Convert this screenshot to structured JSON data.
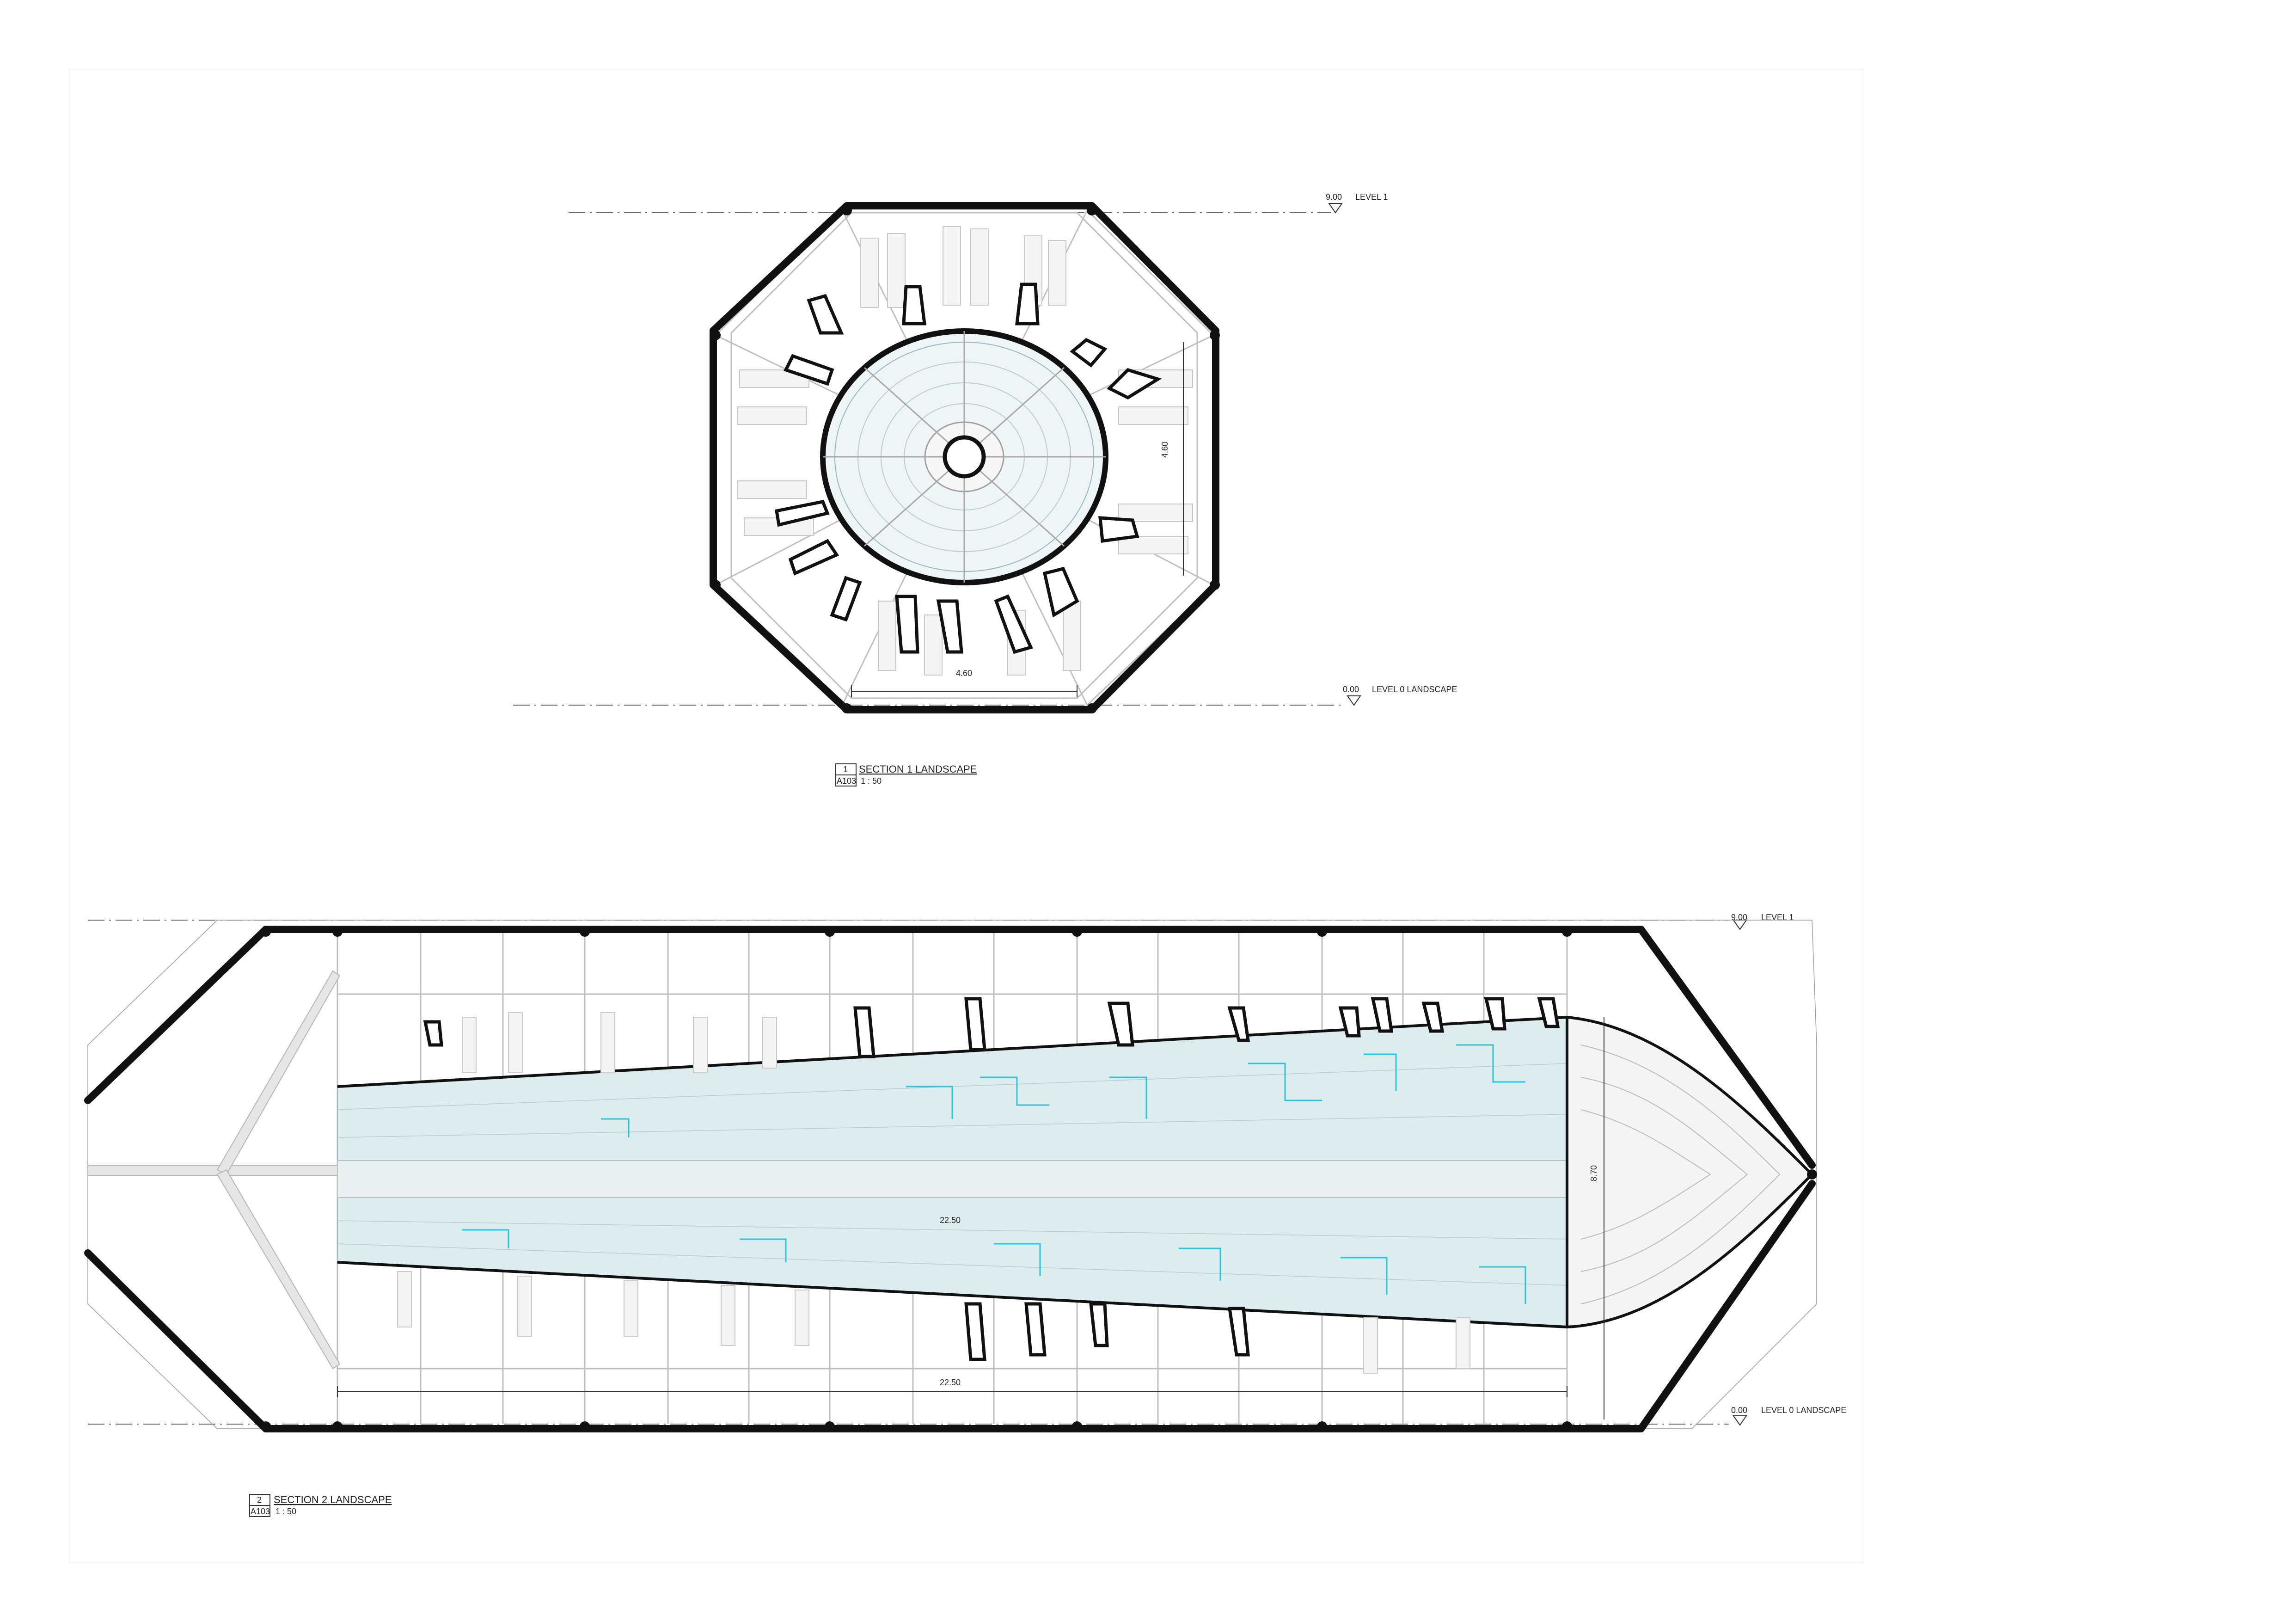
{
  "drawing": {
    "view1": {
      "title": "SECTION 1 LANDSCAPE",
      "number": "1",
      "sheet_ref": "A103",
      "scale": "1 : 50",
      "dimension_bottom": "4.60",
      "dimension_right": "4.60",
      "level_top": {
        "value": "9.00",
        "name": "LEVEL 1"
      },
      "level_bottom": {
        "value": "0.00",
        "name": "LEVEL 0 LANDSCAPE"
      }
    },
    "view2": {
      "title": "SECTION 2 LANDSCAPE",
      "number": "2",
      "sheet_ref": "A103",
      "scale": "1 : 50",
      "dimension_center": "22.50",
      "dimension_bottom": "22.50",
      "dimension_right": "8.70",
      "level_top": {
        "value": "9.00",
        "name": "LEVEL 1"
      },
      "level_bottom": {
        "value": "0.00",
        "name": "LEVEL 0 LANDSCAPE"
      }
    }
  },
  "colors": {
    "line": "#111111",
    "structure_grey": "#bfbfbf",
    "ceiling_fill": "#dcecef",
    "cyan_accent": "#22c6df"
  }
}
